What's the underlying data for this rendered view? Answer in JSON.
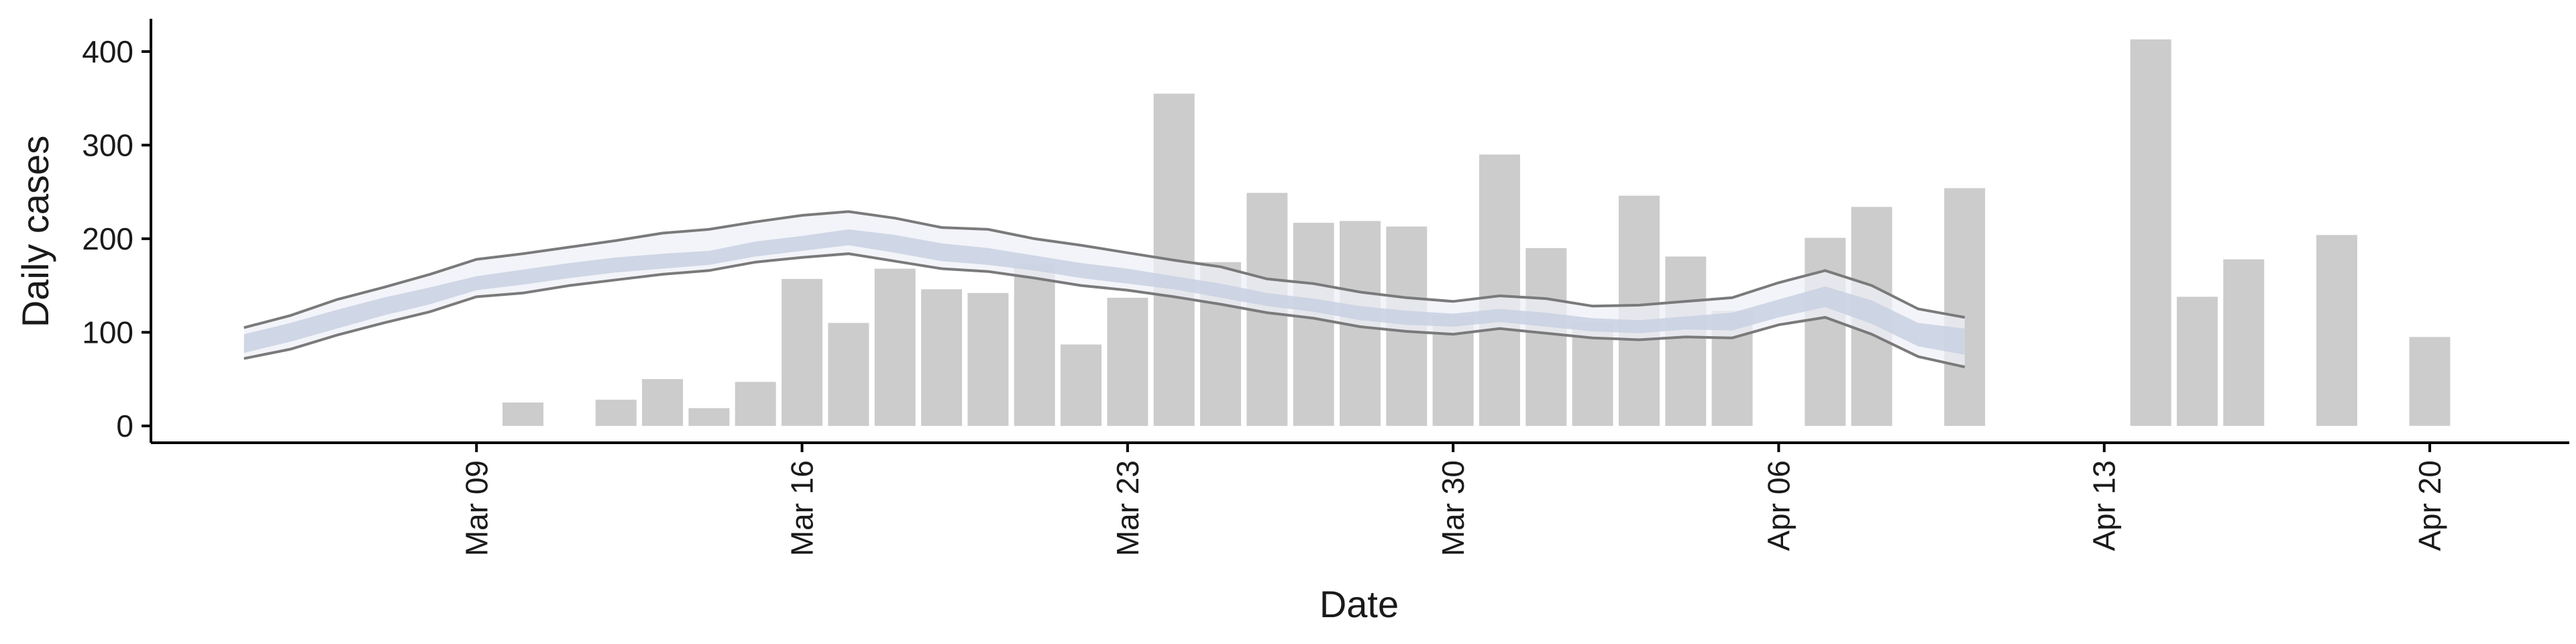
{
  "chart_data": {
    "type": "bar",
    "xlabel": "Date",
    "ylabel": "Daily cases",
    "xlim": [
      "2020-03-02",
      "2020-04-23"
    ],
    "ylim": [
      -18,
      435
    ],
    "grid": false,
    "legend": "none",
    "x_ticks": [
      {
        "date": "2020-03-09",
        "label": "Mar 09"
      },
      {
        "date": "2020-03-16",
        "label": "Mar 16"
      },
      {
        "date": "2020-03-23",
        "label": "Mar 23"
      },
      {
        "date": "2020-03-30",
        "label": "Mar 30"
      },
      {
        "date": "2020-04-06",
        "label": "Apr 06"
      },
      {
        "date": "2020-04-13",
        "label": "Apr 13"
      },
      {
        "date": "2020-04-20",
        "label": "Apr 20"
      }
    ],
    "y_ticks": [
      0,
      100,
      200,
      300,
      400
    ],
    "colors": {
      "bars": "#cccccc",
      "outer_band": "#eef0f7",
      "inner_band": "#c9d0e2",
      "band_edge": "#7a7a7a",
      "axis": "#000000"
    },
    "bars": [
      {
        "date": "2020-03-10",
        "value": 25
      },
      {
        "date": "2020-03-12",
        "value": 28
      },
      {
        "date": "2020-03-13",
        "value": 50
      },
      {
        "date": "2020-03-14",
        "value": 19
      },
      {
        "date": "2020-03-15",
        "value": 47
      },
      {
        "date": "2020-03-16",
        "value": 157
      },
      {
        "date": "2020-03-17",
        "value": 110
      },
      {
        "date": "2020-03-18",
        "value": 168
      },
      {
        "date": "2020-03-19",
        "value": 146
      },
      {
        "date": "2020-03-20",
        "value": 142
      },
      {
        "date": "2020-03-21",
        "value": 173
      },
      {
        "date": "2020-03-22",
        "value": 87
      },
      {
        "date": "2020-03-23",
        "value": 137
      },
      {
        "date": "2020-03-24",
        "value": 355
      },
      {
        "date": "2020-03-25",
        "value": 175
      },
      {
        "date": "2020-03-26",
        "value": 249
      },
      {
        "date": "2020-03-27",
        "value": 217
      },
      {
        "date": "2020-03-28",
        "value": 219
      },
      {
        "date": "2020-03-29",
        "value": 213
      },
      {
        "date": "2020-03-30",
        "value": 118
      },
      {
        "date": "2020-03-31",
        "value": 290
      },
      {
        "date": "2020-04-01",
        "value": 190
      },
      {
        "date": "2020-04-02",
        "value": 110
      },
      {
        "date": "2020-04-03",
        "value": 246
      },
      {
        "date": "2020-04-04",
        "value": 181
      },
      {
        "date": "2020-04-05",
        "value": 123
      },
      {
        "date": "2020-04-07",
        "value": 201
      },
      {
        "date": "2020-04-08",
        "value": 234
      },
      {
        "date": "2020-04-10",
        "value": 254
      },
      {
        "date": "2020-04-14",
        "value": 413
      },
      {
        "date": "2020-04-15",
        "value": 138
      },
      {
        "date": "2020-04-16",
        "value": 178
      },
      {
        "date": "2020-04-18",
        "value": 204
      },
      {
        "date": "2020-04-20",
        "value": 95
      }
    ],
    "band": [
      {
        "date": "2020-03-04",
        "lower": 72,
        "inner_lower": 78,
        "median": 88,
        "inner_upper": 98,
        "upper": 105
      },
      {
        "date": "2020-03-05",
        "lower": 82,
        "inner_lower": 90,
        "median": 100,
        "inner_upper": 110,
        "upper": 118
      },
      {
        "date": "2020-03-06",
        "lower": 97,
        "inner_lower": 104,
        "median": 114,
        "inner_upper": 124,
        "upper": 135
      },
      {
        "date": "2020-03-07",
        "lower": 110,
        "inner_lower": 118,
        "median": 127,
        "inner_upper": 137,
        "upper": 148
      },
      {
        "date": "2020-03-08",
        "lower": 122,
        "inner_lower": 130,
        "median": 139,
        "inner_upper": 148,
        "upper": 162
      },
      {
        "date": "2020-03-09",
        "lower": 138,
        "inner_lower": 145,
        "median": 152,
        "inner_upper": 160,
        "upper": 178
      },
      {
        "date": "2020-03-10",
        "lower": 142,
        "inner_lower": 151,
        "median": 159,
        "inner_upper": 167,
        "upper": 184
      },
      {
        "date": "2020-03-11",
        "lower": 150,
        "inner_lower": 158,
        "median": 166,
        "inner_upper": 174,
        "upper": 191
      },
      {
        "date": "2020-03-12",
        "lower": 156,
        "inner_lower": 164,
        "median": 172,
        "inner_upper": 180,
        "upper": 198
      },
      {
        "date": "2020-03-13",
        "lower": 162,
        "inner_lower": 168,
        "median": 176,
        "inner_upper": 184,
        "upper": 206
      },
      {
        "date": "2020-03-14",
        "lower": 166,
        "inner_lower": 172,
        "median": 179,
        "inner_upper": 187,
        "upper": 210
      },
      {
        "date": "2020-03-15",
        "lower": 175,
        "inner_lower": 181,
        "median": 189,
        "inner_upper": 197,
        "upper": 218
      },
      {
        "date": "2020-03-16",
        "lower": 180,
        "inner_lower": 187,
        "median": 195,
        "inner_upper": 203,
        "upper": 225
      },
      {
        "date": "2020-03-17",
        "lower": 184,
        "inner_lower": 193,
        "median": 202,
        "inner_upper": 210,
        "upper": 229
      },
      {
        "date": "2020-03-18",
        "lower": 176,
        "inner_lower": 185,
        "median": 195,
        "inner_upper": 204,
        "upper": 222
      },
      {
        "date": "2020-03-19",
        "lower": 168,
        "inner_lower": 176,
        "median": 186,
        "inner_upper": 195,
        "upper": 212
      },
      {
        "date": "2020-03-20",
        "lower": 165,
        "inner_lower": 172,
        "median": 181,
        "inner_upper": 190,
        "upper": 210
      },
      {
        "date": "2020-03-21",
        "lower": 158,
        "inner_lower": 166,
        "median": 174,
        "inner_upper": 182,
        "upper": 200
      },
      {
        "date": "2020-03-22",
        "lower": 150,
        "inner_lower": 158,
        "median": 166,
        "inner_upper": 174,
        "upper": 193
      },
      {
        "date": "2020-03-23",
        "lower": 145,
        "inner_lower": 152,
        "median": 160,
        "inner_upper": 168,
        "upper": 185
      },
      {
        "date": "2020-03-24",
        "lower": 138,
        "inner_lower": 146,
        "median": 153,
        "inner_upper": 160,
        "upper": 177
      },
      {
        "date": "2020-03-25",
        "lower": 130,
        "inner_lower": 137,
        "median": 145,
        "inner_upper": 152,
        "upper": 170
      },
      {
        "date": "2020-03-26",
        "lower": 121,
        "inner_lower": 128,
        "median": 135,
        "inner_upper": 142,
        "upper": 157
      },
      {
        "date": "2020-03-27",
        "lower": 115,
        "inner_lower": 122,
        "median": 129,
        "inner_upper": 136,
        "upper": 152
      },
      {
        "date": "2020-03-28",
        "lower": 106,
        "inner_lower": 113,
        "median": 121,
        "inner_upper": 128,
        "upper": 143
      },
      {
        "date": "2020-03-29",
        "lower": 101,
        "inner_lower": 108,
        "median": 116,
        "inner_upper": 123,
        "upper": 137
      },
      {
        "date": "2020-03-30",
        "lower": 98,
        "inner_lower": 106,
        "median": 113,
        "inner_upper": 120,
        "upper": 133
      },
      {
        "date": "2020-03-31",
        "lower": 104,
        "inner_lower": 111,
        "median": 118,
        "inner_upper": 125,
        "upper": 139
      },
      {
        "date": "2020-04-01",
        "lower": 99,
        "inner_lower": 106,
        "median": 114,
        "inner_upper": 121,
        "upper": 136
      },
      {
        "date": "2020-04-02",
        "lower": 94,
        "inner_lower": 101,
        "median": 108,
        "inner_upper": 115,
        "upper": 128
      },
      {
        "date": "2020-04-03",
        "lower": 92,
        "inner_lower": 99,
        "median": 106,
        "inner_upper": 113,
        "upper": 129
      },
      {
        "date": "2020-04-04",
        "lower": 95,
        "inner_lower": 103,
        "median": 110,
        "inner_upper": 117,
        "upper": 133
      },
      {
        "date": "2020-04-05",
        "lower": 94,
        "inner_lower": 102,
        "median": 112,
        "inner_upper": 121,
        "upper": 137
      },
      {
        "date": "2020-04-06",
        "lower": 108,
        "inner_lower": 116,
        "median": 125,
        "inner_upper": 135,
        "upper": 153
      },
      {
        "date": "2020-04-07",
        "lower": 116,
        "inner_lower": 127,
        "median": 138,
        "inner_upper": 149,
        "upper": 166
      },
      {
        "date": "2020-04-08",
        "lower": 98,
        "inner_lower": 109,
        "median": 121,
        "inner_upper": 134,
        "upper": 150
      },
      {
        "date": "2020-04-09",
        "lower": 74,
        "inner_lower": 85,
        "median": 97,
        "inner_upper": 110,
        "upper": 125
      },
      {
        "date": "2020-04-10",
        "lower": 63,
        "inner_lower": 76,
        "median": 90,
        "inner_upper": 104,
        "upper": 116
      }
    ]
  }
}
